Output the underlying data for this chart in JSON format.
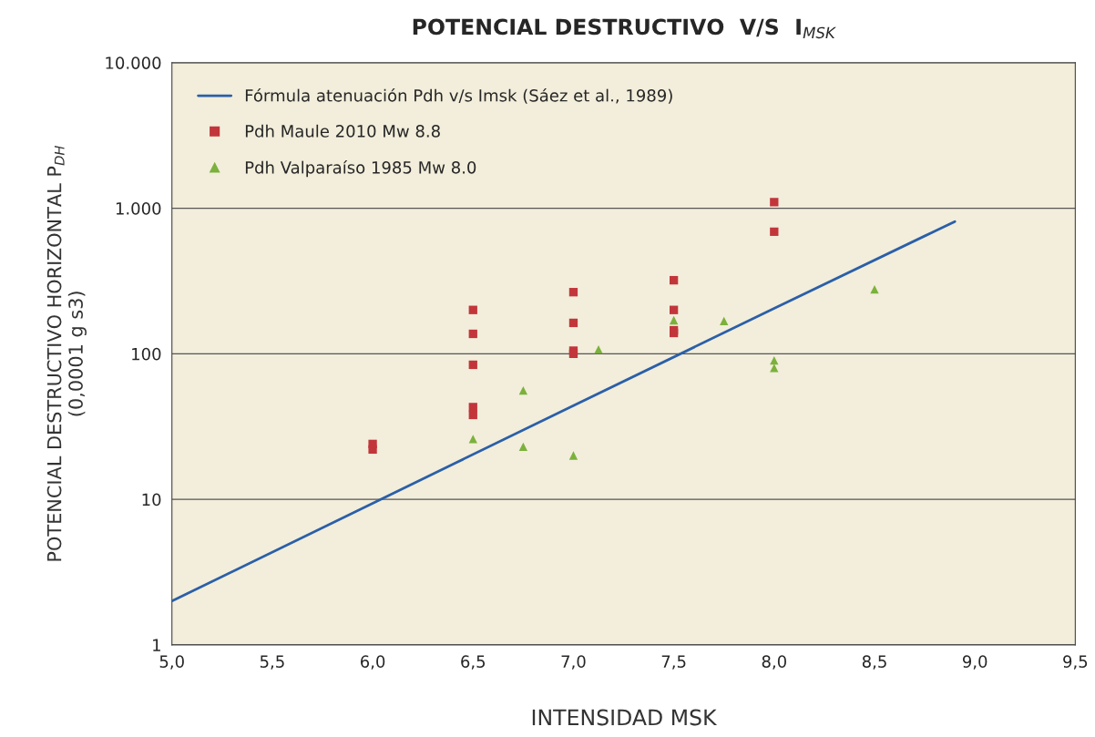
{
  "chart_data": {
    "type": "scatter",
    "title": "POTENCIAL DESTRUCTIVO  V/S  I$_{MSK}$",
    "xlabel": "INTENSIDAD MSK",
    "ylabel": "POTENCIAL DESTRUCTIVO HORIZONTAL P$_{DH}$\n(0,0001 g s3)",
    "log": "y",
    "grid": "y",
    "legend": "top left",
    "xlim": [
      5.0,
      9.5
    ],
    "xticks": [
      {
        "value": 5.0,
        "label": "5,0"
      },
      {
        "value": 5.5,
        "label": "5,5"
      },
      {
        "value": 6.0,
        "label": "6,0"
      },
      {
        "value": 6.5,
        "label": "6,5"
      },
      {
        "value": 7.0,
        "label": "7,0"
      },
      {
        "value": 7.5,
        "label": "7,5"
      },
      {
        "value": 8.0,
        "label": "8,0"
      },
      {
        "value": 8.5,
        "label": "8,5"
      },
      {
        "value": 9.0,
        "label": "9,0"
      },
      {
        "value": 9.5,
        "label": "9,5"
      }
    ],
    "ylim": [
      1,
      10000
    ],
    "yticks": [
      1,
      10,
      100,
      {
        "value": 1000,
        "label": "1.000"
      },
      {
        "value": 10000,
        "label": "10.000"
      }
    ],
    "series": [
      {
        "name": "Fórmula atenuación Pdh v/s Imsk (Sáez et al., 1989)",
        "type": "line",
        "color": "#2b5fa8",
        "marker": "none",
        "line_style": "solid",
        "x": [
          5.0,
          6.0,
          7.0,
          8.0,
          8.9
        ],
        "values": [
          2.0,
          9.4,
          44,
          205,
          810
        ]
      },
      {
        "name": "Pdh Maule 2010 Mw 8.8",
        "type": "scatter",
        "color": "#c2363b",
        "marker": "square",
        "x": [
          6.0,
          6.0,
          6.5,
          6.5,
          6.5,
          6.5,
          6.5,
          7.0,
          7.0,
          7.0,
          7.0,
          7.5,
          7.5,
          7.5,
          7.5,
          8.0,
          8.0
        ],
        "values": [
          22,
          24,
          200,
          137,
          84,
          43,
          38,
          265,
          163,
          105,
          100,
          320,
          200,
          145,
          139,
          1100,
          690
        ]
      },
      {
        "name": "Pdh Valparaíso 1985 Mw 8.0",
        "type": "scatter",
        "color": "#7bb13c",
        "marker": "triangle",
        "x": [
          6.5,
          6.75,
          6.75,
          7.0,
          7.125,
          7.5,
          7.75,
          8.0,
          8.0,
          8.5
        ],
        "values": [
          26,
          56,
          23,
          20,
          107,
          170,
          168,
          90,
          80,
          277
        ]
      }
    ]
  }
}
